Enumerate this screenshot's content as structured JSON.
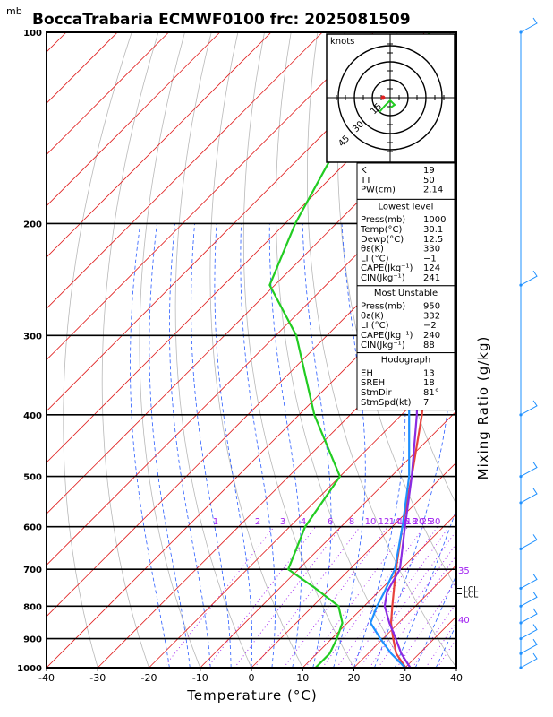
{
  "header": {
    "unit_mb": "mb",
    "title": "BoccaTrabaria ECMWF0100 frc: 2025081509"
  },
  "axes": {
    "xlabel": "Temperature (°C)",
    "right_label": "Mixing Ratio (g/kg)",
    "x_ticks": [
      "-40",
      "-30",
      "-20",
      "-10",
      "0",
      "10",
      "20",
      "30",
      "40"
    ],
    "p_ticks": [
      "100",
      "200",
      "300",
      "400",
      "500",
      "600",
      "700",
      "800",
      "900",
      "1000"
    ],
    "mixing_labels": [
      "1",
      "2",
      "3",
      "4",
      "6",
      "8",
      "10",
      "12",
      "14",
      "16",
      "18",
      "20",
      "25",
      "30"
    ],
    "mixing_labels_right": [
      "35",
      "40"
    ],
    "lcl_label": "LCL"
  },
  "hodograph": {
    "label": "knots",
    "rings": [
      "15",
      "30",
      "45"
    ]
  },
  "indices_table": [
    {
      "section": "",
      "rows": [
        [
          "K",
          "19"
        ],
        [
          "TT",
          "50"
        ],
        [
          "PW(cm)",
          "2.14"
        ]
      ]
    },
    {
      "section": "Lowest level",
      "rows": [
        [
          "Press(mb)",
          "1000"
        ],
        [
          "Temp(°C)",
          "30.1"
        ],
        [
          "Dewp(°C)",
          "12.5"
        ],
        [
          "θε(K)",
          "330"
        ],
        [
          "LI (°C)",
          "−1"
        ],
        [
          "CAPE(Jkg⁻¹)",
          "124"
        ],
        [
          "CIN(Jkg⁻¹)",
          "241"
        ]
      ]
    },
    {
      "section": "Most Unstable",
      "rows": [
        [
          "Press(mb)",
          "950"
        ],
        [
          "θε(K)",
          "332"
        ],
        [
          "LI (°C)",
          "−2"
        ],
        [
          "CAPE(Jkg⁻¹)",
          "240"
        ],
        [
          "CIN(Jkg⁻¹)",
          "88"
        ]
      ]
    },
    {
      "section": "Hodograph",
      "rows": [
        [
          "EH",
          "13"
        ],
        [
          "SREH",
          "18"
        ],
        [
          "StmDir",
          "81°"
        ],
        [
          "StmSpd(kt)",
          "7"
        ]
      ]
    }
  ],
  "chart_data": {
    "type": "line",
    "subtype": "skew-T log-P sounding",
    "xlabel": "Temperature (°C)",
    "ylabel": "mb",
    "xlim": [
      -40,
      40
    ],
    "ylim_pressure": [
      1000,
      100
    ],
    "log_pressure": true,
    "series": [
      {
        "name": "",
        "role": "temperature",
        "color": "#e8423c",
        "points": [
          [
            1000,
            30.1
          ],
          [
            950,
            25.5
          ],
          [
            900,
            22
          ],
          [
            850,
            18.5
          ],
          [
            800,
            15.5
          ],
          [
            700,
            9
          ],
          [
            600,
            2
          ],
          [
            500,
            -6
          ],
          [
            400,
            -16
          ],
          [
            300,
            -30
          ],
          [
            250,
            -41
          ],
          [
            200,
            -53
          ],
          [
            150,
            -61
          ],
          [
            100,
            -63
          ]
        ]
      },
      {
        "name": "",
        "role": "dewpoint",
        "color": "#22cc22",
        "points": [
          [
            1000,
            12.5
          ],
          [
            950,
            12.5
          ],
          [
            900,
            11
          ],
          [
            850,
            9
          ],
          [
            800,
            5
          ],
          [
            750,
            -3
          ],
          [
            700,
            -12
          ],
          [
            600,
            -17
          ],
          [
            500,
            -20
          ],
          [
            400,
            -37
          ],
          [
            300,
            -56
          ],
          [
            250,
            -71
          ],
          [
            200,
            -78
          ],
          [
            150,
            -85
          ],
          [
            100,
            -89
          ]
        ]
      },
      {
        "name": "",
        "role": "virtual temperature",
        "color": "#8a2be2",
        "points": [
          [
            1000,
            31
          ],
          [
            950,
            26.5
          ],
          [
            900,
            22.5
          ],
          [
            850,
            18.2
          ],
          [
            800,
            14
          ],
          [
            760,
            11.7
          ],
          [
            700,
            9.8
          ],
          [
            600,
            2.5
          ],
          [
            500,
            -6
          ],
          [
            400,
            -17
          ],
          [
            300,
            -32
          ],
          [
            250,
            -42
          ],
          [
            200,
            -55
          ],
          [
            150,
            -72
          ],
          [
            120,
            -84
          ]
        ]
      },
      {
        "name": "",
        "role": "parcel",
        "color": "#1e90ff",
        "points": [
          [
            1000,
            30
          ],
          [
            950,
            24.5
          ],
          [
            900,
            19.5
          ],
          [
            850,
            14.5
          ],
          [
            800,
            12.5
          ],
          [
            760,
            11.2
          ],
          [
            700,
            8.8
          ],
          [
            600,
            2
          ],
          [
            500,
            -6.5
          ],
          [
            400,
            -18.5
          ],
          [
            300,
            -34
          ],
          [
            250,
            -44
          ],
          [
            200,
            -57
          ],
          [
            150,
            -74
          ],
          [
            120,
            -87
          ]
        ]
      }
    ],
    "lcl_pressure": 760,
    "wind_barbs_pressure": [
      100,
      250,
      400,
      500,
      550,
      650,
      750,
      800,
      850,
      900,
      950,
      1000
    ]
  }
}
